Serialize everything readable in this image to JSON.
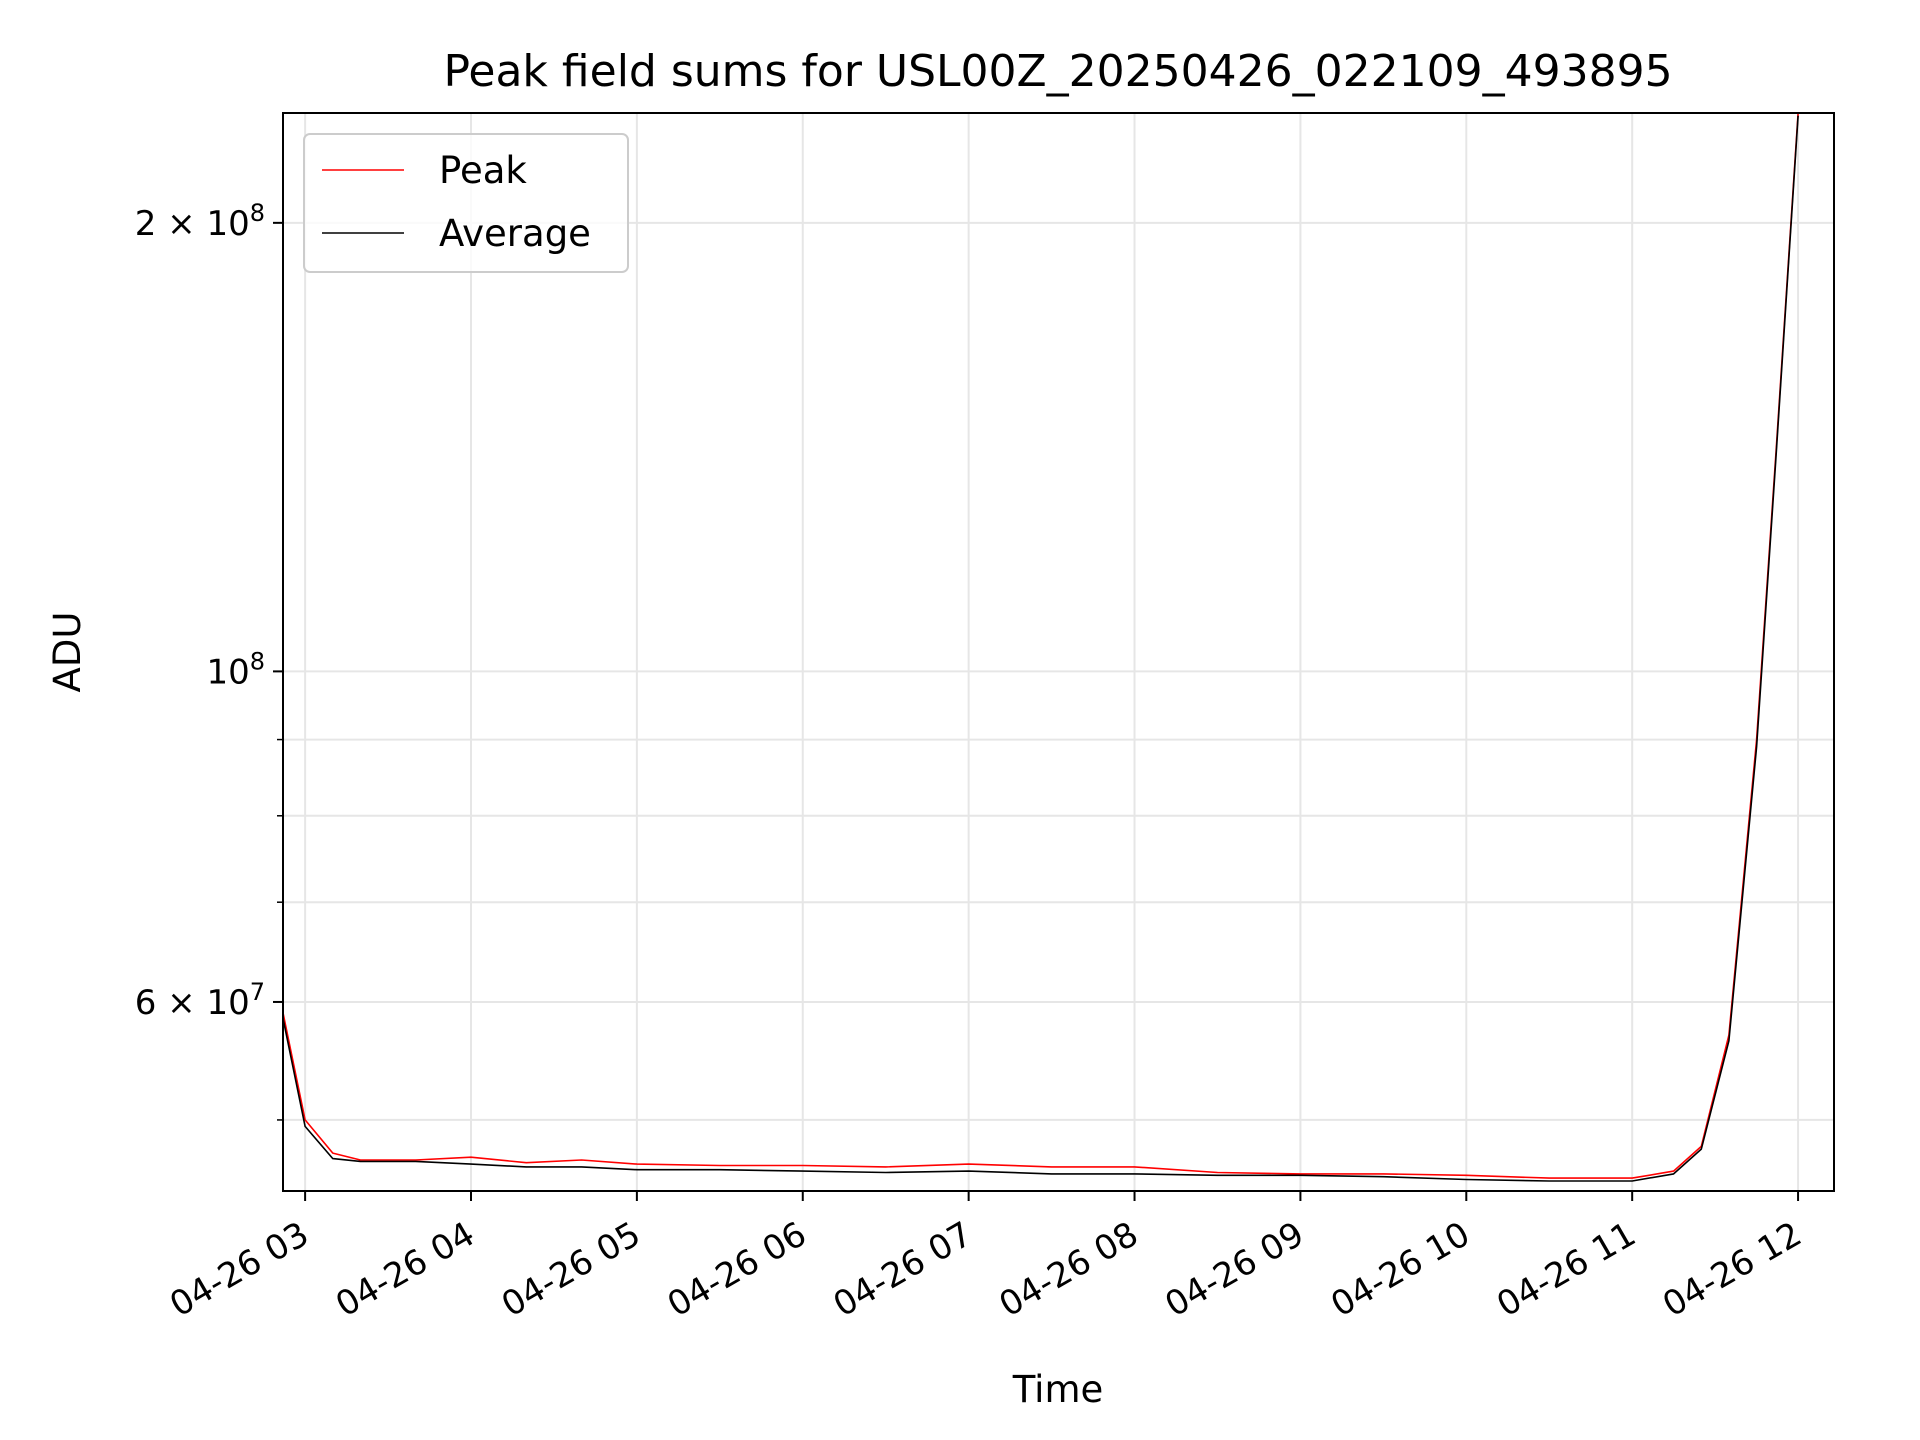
{
  "chart_data": {
    "type": "line",
    "title": "Peak field sums for USL00Z_20250426_022109_493895",
    "xlabel": "Time",
    "ylabel": "ADU",
    "x_scale": "time",
    "y_scale": "log",
    "xlim": [
      "2025-04-26 02:52",
      "2025-04-26 12:13"
    ],
    "ylim": [
      44800000,
      237000000
    ],
    "grid": true,
    "legend_position": "upper left",
    "x_ticks": [
      "04-26 03",
      "04-26 04",
      "04-26 05",
      "04-26 06",
      "04-26 07",
      "04-26 08",
      "04-26 09",
      "04-26 10",
      "04-26 11",
      "04-26 12"
    ],
    "y_ticks": [
      {
        "value": 60000000,
        "label_base": "6 × 10",
        "label_exp": "7"
      },
      {
        "value": 100000000,
        "label_base": "10",
        "label_exp": "8"
      },
      {
        "value": 200000000,
        "label_base": "2 × 10",
        "label_exp": "8"
      }
    ],
    "y_minor_ticks": [
      50000000,
      70000000,
      80000000,
      90000000
    ],
    "series": [
      {
        "name": "Peak",
        "color": "#ff0000",
        "points": [
          [
            "2025-04-26 02:52",
            59000000
          ],
          [
            "2025-04-26 03:00",
            50000000
          ],
          [
            "2025-04-26 03:10",
            47500000
          ],
          [
            "2025-04-26 03:20",
            47000000
          ],
          [
            "2025-04-26 03:40",
            47000000
          ],
          [
            "2025-04-26 04:00",
            47200000
          ],
          [
            "2025-04-26 04:20",
            46800000
          ],
          [
            "2025-04-26 04:40",
            47000000
          ],
          [
            "2025-04-26 05:00",
            46700000
          ],
          [
            "2025-04-26 05:30",
            46600000
          ],
          [
            "2025-04-26 06:00",
            46600000
          ],
          [
            "2025-04-26 06:30",
            46500000
          ],
          [
            "2025-04-26 07:00",
            46700000
          ],
          [
            "2025-04-26 07:30",
            46500000
          ],
          [
            "2025-04-26 08:00",
            46500000
          ],
          [
            "2025-04-26 08:30",
            46100000
          ],
          [
            "2025-04-26 09:00",
            46000000
          ],
          [
            "2025-04-26 09:30",
            46000000
          ],
          [
            "2025-04-26 10:00",
            45900000
          ],
          [
            "2025-04-26 10:30",
            45700000
          ],
          [
            "2025-04-26 11:00",
            45700000
          ],
          [
            "2025-04-26 11:15",
            46200000
          ],
          [
            "2025-04-26 11:25",
            48000000
          ],
          [
            "2025-04-26 11:35",
            57000000
          ],
          [
            "2025-04-26 11:45",
            90000000
          ],
          [
            "2025-04-26 11:52",
            140000000
          ],
          [
            "2025-04-26 12:00",
            237000000
          ]
        ]
      },
      {
        "name": "Average",
        "color": "#000000",
        "points": [
          [
            "2025-04-26 02:52",
            58500000
          ],
          [
            "2025-04-26 03:00",
            49500000
          ],
          [
            "2025-04-26 03:10",
            47100000
          ],
          [
            "2025-04-26 03:20",
            46900000
          ],
          [
            "2025-04-26 03:40",
            46900000
          ],
          [
            "2025-04-26 04:00",
            46700000
          ],
          [
            "2025-04-26 04:20",
            46500000
          ],
          [
            "2025-04-26 04:40",
            46500000
          ],
          [
            "2025-04-26 05:00",
            46300000
          ],
          [
            "2025-04-26 05:30",
            46300000
          ],
          [
            "2025-04-26 06:00",
            46200000
          ],
          [
            "2025-04-26 06:30",
            46100000
          ],
          [
            "2025-04-26 07:00",
            46200000
          ],
          [
            "2025-04-26 07:30",
            46000000
          ],
          [
            "2025-04-26 08:00",
            46000000
          ],
          [
            "2025-04-26 08:30",
            45900000
          ],
          [
            "2025-04-26 09:00",
            45900000
          ],
          [
            "2025-04-26 09:30",
            45800000
          ],
          [
            "2025-04-26 10:00",
            45600000
          ],
          [
            "2025-04-26 10:30",
            45500000
          ],
          [
            "2025-04-26 11:00",
            45500000
          ],
          [
            "2025-04-26 11:15",
            46000000
          ],
          [
            "2025-04-26 11:25",
            47800000
          ],
          [
            "2025-04-26 11:35",
            56500000
          ],
          [
            "2025-04-26 11:45",
            89000000
          ],
          [
            "2025-04-26 11:52",
            139000000
          ],
          [
            "2025-04-26 12:00",
            236000000
          ]
        ]
      }
    ]
  }
}
